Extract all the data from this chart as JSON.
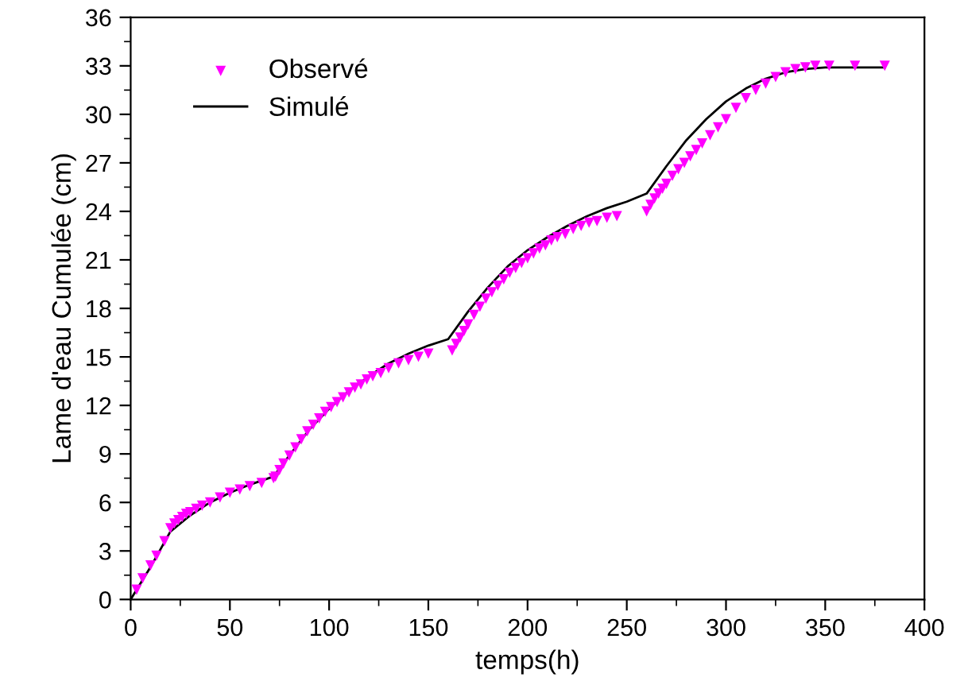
{
  "chart_data": {
    "type": "scatter",
    "xlabel": "temps(h)",
    "ylabel": "Lame d'eau Cumulée (cm)",
    "xlim": [
      0,
      400
    ],
    "xticks": [
      0,
      50,
      100,
      150,
      200,
      250,
      300,
      350,
      400
    ],
    "ylim": [
      0,
      36
    ],
    "yticks": [
      0,
      3,
      6,
      9,
      12,
      15,
      18,
      21,
      24,
      27,
      30,
      33,
      36
    ],
    "grid": false,
    "legend": "top left",
    "series": [
      {
        "name": "Observé",
        "marker": "triangle",
        "color": "#ff00ff",
        "x": [
          3,
          6,
          10,
          13,
          17,
          20,
          22,
          24,
          26,
          28,
          30,
          33,
          36,
          40,
          45,
          50,
          55,
          60,
          66,
          72,
          73,
          75,
          77,
          80,
          83,
          86,
          89,
          92,
          95,
          98,
          101,
          104,
          107,
          110,
          113,
          116,
          119,
          122,
          126,
          130,
          135,
          140,
          145,
          150,
          162,
          164,
          166,
          168,
          170,
          173,
          176,
          179,
          182,
          185,
          188,
          191,
          194,
          197,
          200,
          203,
          206,
          209,
          212,
          215,
          219,
          223,
          227,
          231,
          235,
          240,
          245,
          260,
          262,
          264,
          266,
          268,
          270,
          273,
          276,
          279,
          282,
          285,
          288,
          292,
          296,
          300,
          305,
          310,
          315,
          320,
          325,
          330,
          335,
          340,
          345,
          352,
          365,
          380
        ],
        "values": [
          0.6,
          1.3,
          2.1,
          2.7,
          3.6,
          4.4,
          4.7,
          4.9,
          5.1,
          5.3,
          5.4,
          5.6,
          5.8,
          6.0,
          6.3,
          6.6,
          6.8,
          7.0,
          7.2,
          7.5,
          7.6,
          8.0,
          8.4,
          8.9,
          9.4,
          9.9,
          10.4,
          10.8,
          11.2,
          11.6,
          11.9,
          12.2,
          12.5,
          12.8,
          13.1,
          13.3,
          13.6,
          13.8,
          14.0,
          14.3,
          14.6,
          14.8,
          15.0,
          15.2,
          15.4,
          15.8,
          16.2,
          16.6,
          17.0,
          17.6,
          18.1,
          18.6,
          19.0,
          19.4,
          19.8,
          20.2,
          20.5,
          20.8,
          21.1,
          21.4,
          21.7,
          21.9,
          22.2,
          22.4,
          22.6,
          22.9,
          23.1,
          23.3,
          23.4,
          23.6,
          23.7,
          24.0,
          24.4,
          24.8,
          25.1,
          25.4,
          25.7,
          26.2,
          26.6,
          27.0,
          27.4,
          27.8,
          28.2,
          28.7,
          29.2,
          29.7,
          30.4,
          31.0,
          31.5,
          31.9,
          32.3,
          32.6,
          32.8,
          32.9,
          33.0,
          33.0,
          33.0,
          33.0
        ]
      },
      {
        "name": "Simulé",
        "type": "line",
        "line_style": "solid",
        "color": "#000000",
        "x": [
          0,
          10,
          20,
          30,
          40,
          50,
          60,
          72,
          80,
          90,
          100,
          110,
          120,
          130,
          140,
          150,
          160,
          170,
          180,
          190,
          200,
          210,
          220,
          230,
          240,
          250,
          260,
          270,
          280,
          290,
          300,
          310,
          320,
          330,
          340,
          350,
          380
        ],
        "values": [
          0,
          2,
          4.2,
          5.2,
          6,
          6.6,
          7.1,
          7.6,
          8.9,
          10.5,
          11.8,
          12.9,
          13.8,
          14.6,
          15.2,
          15.7,
          16.1,
          17.8,
          19.3,
          20.6,
          21.6,
          22.4,
          23.1,
          23.7,
          24.2,
          24.6,
          25.1,
          26.8,
          28.4,
          29.7,
          30.8,
          31.6,
          32.2,
          32.6,
          32.8,
          32.9,
          32.9
        ]
      }
    ]
  }
}
